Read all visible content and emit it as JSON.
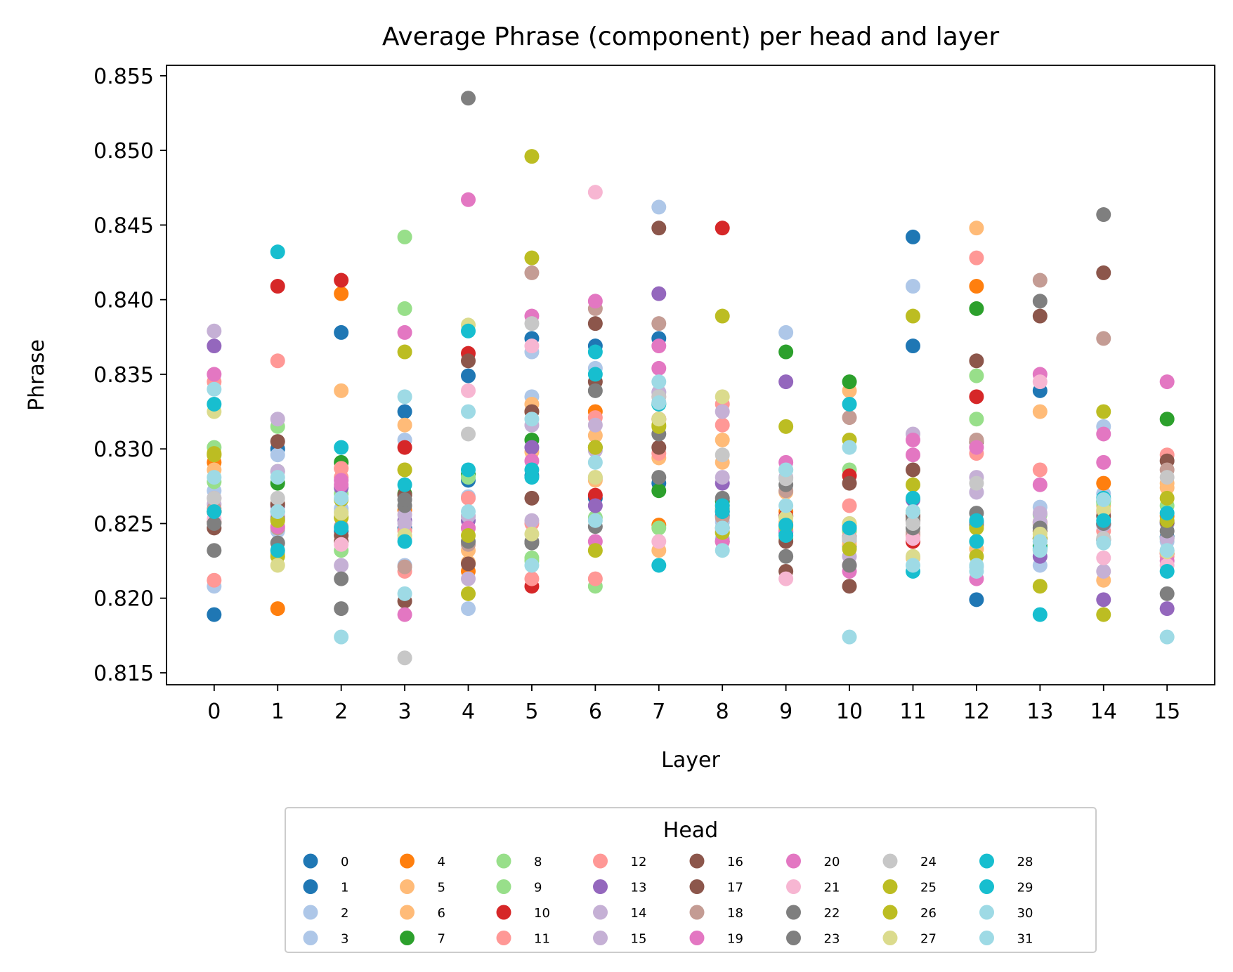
{
  "chart_data": {
    "type": "scatter",
    "title": "Average Phrase (component) per head and layer",
    "xlabel": "Layer",
    "ylabel": "Phrase",
    "x_ticks": [
      0,
      1,
      2,
      3,
      4,
      5,
      6,
      7,
      8,
      9,
      10,
      11,
      12,
      13,
      14,
      15
    ],
    "y_ticks": [
      "0.815",
      "0.820",
      "0.825",
      "0.830",
      "0.835",
      "0.840",
      "0.845",
      "0.850",
      "0.855"
    ],
    "xlim": [
      -0.75,
      15.75
    ],
    "ylim": [
      0.8142,
      0.8557
    ],
    "grid": false,
    "legend": {
      "title": "Head",
      "placement": "bottom-center, below plot",
      "columns": 8
    },
    "series": [
      {
        "name": "0",
        "color": "#1f77b4",
        "values": [
          0.8189,
          0.83,
          0.8378,
          0.8325,
          0.8349,
          0.8374,
          0.8369,
          0.8374,
          0.826,
          0.8244,
          0.8241,
          0.8369,
          0.8199,
          0.8339,
          0.825,
          0.825
        ]
      },
      {
        "name": "1",
        "color": "#1f77b4",
        "values": [
          0.8258,
          0.8258,
          0.8245,
          0.8247,
          0.8279,
          0.8282,
          0.8267,
          0.8277,
          0.8255,
          0.8255,
          0.8235,
          0.8442,
          0.8251,
          0.824,
          0.8239,
          0.8241
        ]
      },
      {
        "name": "2",
        "color": "#aec7e8",
        "values": [
          0.8208,
          0.8296,
          0.826,
          0.8306,
          0.8193,
          0.8365,
          0.8354,
          0.8462,
          0.8251,
          0.8378,
          0.825,
          0.8409,
          0.8271,
          0.8261,
          0.8315,
          0.8238
        ]
      },
      {
        "name": "3",
        "color": "#aec7e8",
        "values": [
          0.8272,
          0.8245,
          0.8258,
          0.8222,
          0.8268,
          0.8335,
          0.828,
          0.8338,
          0.824,
          0.8255,
          0.8238,
          0.8242,
          0.8221,
          0.8222,
          0.827,
          0.8232
        ]
      },
      {
        "name": "4",
        "color": "#ff7f0e",
        "values": [
          0.8291,
          0.8193,
          0.8404,
          0.8259,
          0.8218,
          0.8325,
          0.8325,
          0.8249,
          0.8262,
          0.8258,
          0.8245,
          0.8253,
          0.8409,
          0.8251,
          0.8277,
          0.8255
        ]
      },
      {
        "name": "5",
        "color": "#ffbb78",
        "values": [
          0.8296,
          0.823,
          0.8339,
          0.8316,
          0.8232,
          0.833,
          0.8309,
          0.8232,
          0.8306,
          0.8271,
          0.8339,
          0.8227,
          0.8448,
          0.8325,
          0.8212,
          0.8277
        ]
      },
      {
        "name": "6",
        "color": "#ffbb78",
        "values": [
          0.8286,
          0.8263,
          0.8287,
          0.8286,
          0.8224,
          0.8298,
          0.8279,
          0.8294,
          0.8291,
          0.8251,
          0.8236,
          0.8251,
          0.8233,
          0.8232,
          0.8262,
          0.8274
        ]
      },
      {
        "name": "7",
        "color": "#2ca02c",
        "values": [
          0.8258,
          0.8277,
          0.8291,
          0.827,
          0.8283,
          0.8306,
          0.8301,
          0.8272,
          0.8265,
          0.8365,
          0.8345,
          0.8258,
          0.8394,
          0.8235,
          0.8265,
          0.832
        ]
      },
      {
        "name": "8",
        "color": "#98df8a",
        "values": [
          0.8301,
          0.8315,
          0.8232,
          0.8442,
          0.8281,
          0.8227,
          0.8208,
          0.8247,
          0.8259,
          0.8286,
          0.8286,
          0.8242,
          0.8349,
          0.8249,
          0.8264,
          0.8262
        ]
      },
      {
        "name": "9",
        "color": "#98df8a",
        "values": [
          0.8278,
          0.8285,
          0.827,
          0.8394,
          0.8255,
          0.8225,
          0.8254,
          0.833,
          0.8244,
          0.824,
          0.8245,
          0.8256,
          0.832,
          0.8256,
          0.824,
          0.824
        ]
      },
      {
        "name": "10",
        "color": "#d62728",
        "values": [
          0.8258,
          0.8409,
          0.8413,
          0.8301,
          0.8364,
          0.8208,
          0.8269,
          0.832,
          0.8448,
          0.8255,
          0.8282,
          0.8238,
          0.8335,
          0.824,
          0.8249,
          0.823
        ]
      },
      {
        "name": "11",
        "color": "#ff9896",
        "values": [
          0.8212,
          0.8359,
          0.8287,
          0.8218,
          0.8267,
          0.8213,
          0.8213,
          0.8297,
          0.8316,
          0.8246,
          0.8262,
          0.8242,
          0.8428,
          0.8286,
          0.8245,
          0.8296
        ]
      },
      {
        "name": "12",
        "color": "#ff9896",
        "values": [
          0.8345,
          0.8252,
          0.8281,
          0.8245,
          0.8247,
          0.825,
          0.8321,
          0.8335,
          0.833,
          0.8249,
          0.8241,
          0.8251,
          0.8297,
          0.825,
          0.8258,
          0.8228
        ]
      },
      {
        "name": "13",
        "color": "#9467bd",
        "values": [
          0.8369,
          0.8262,
          0.8274,
          0.8252,
          0.8252,
          0.8301,
          0.8262,
          0.8404,
          0.8277,
          0.8345,
          0.8249,
          0.8266,
          0.8251,
          0.8228,
          0.8199,
          0.8193
        ]
      },
      {
        "name": "14",
        "color": "#c5b0d5",
        "values": [
          0.8379,
          0.832,
          0.8222,
          0.8256,
          0.8213,
          0.8252,
          0.8316,
          0.8331,
          0.8325,
          0.8281,
          0.824,
          0.831,
          0.8281,
          0.8257,
          0.8218,
          0.824
        ]
      },
      {
        "name": "15",
        "color": "#c5b0d5",
        "values": [
          0.8263,
          0.8285,
          0.8254,
          0.825,
          0.8255,
          0.8316,
          0.8299,
          0.8338,
          0.8281,
          0.8245,
          0.8228,
          0.8255,
          0.8271,
          0.8251,
          0.8249,
          0.825
        ]
      },
      {
        "name": "16",
        "color": "#8c564b",
        "values": [
          0.8247,
          0.8305,
          0.8238,
          0.8198,
          0.8223,
          0.8267,
          0.8384,
          0.8301,
          0.8238,
          0.8238,
          0.8208,
          0.8286,
          0.8359,
          0.8389,
          0.8418,
          0.8292
        ]
      },
      {
        "name": "17",
        "color": "#8c564b",
        "values": [
          0.8251,
          0.8263,
          0.8242,
          0.8269,
          0.8359,
          0.8325,
          0.8345,
          0.8448,
          0.8247,
          0.8218,
          0.8277,
          0.8255,
          0.8305,
          0.8245,
          0.8255,
          0.8251
        ]
      },
      {
        "name": "18",
        "color": "#c49c94",
        "values": [
          0.826,
          0.8247,
          0.8248,
          0.8221,
          0.8236,
          0.8418,
          0.8394,
          0.8384,
          0.8254,
          0.8272,
          0.8321,
          0.8244,
          0.8306,
          0.8413,
          0.8374,
          0.8286
        ]
      },
      {
        "name": "19",
        "color": "#e377c2",
        "values": [
          0.835,
          0.8248,
          0.8276,
          0.8378,
          0.8247,
          0.8389,
          0.8399,
          0.8354,
          0.8238,
          0.8291,
          0.8218,
          0.8306,
          0.8301,
          0.835,
          0.831,
          0.8345
        ]
      },
      {
        "name": "20",
        "color": "#e377c2",
        "values": [
          0.8267,
          0.8255,
          0.8279,
          0.8189,
          0.8467,
          0.8292,
          0.8238,
          0.8369,
          0.8258,
          0.8245,
          0.8222,
          0.8296,
          0.8213,
          0.8276,
          0.8291,
          0.8225
        ]
      },
      {
        "name": "21",
        "color": "#f7b6d2",
        "values": [
          0.8253,
          0.8255,
          0.8236,
          0.824,
          0.8339,
          0.8369,
          0.8472,
          0.8238,
          0.8245,
          0.8213,
          0.825,
          0.824,
          0.8249,
          0.8345,
          0.8227,
          0.8222
        ]
      },
      {
        "name": "22",
        "color": "#7f7f7f",
        "values": [
          0.8232,
          0.8237,
          0.8213,
          0.8262,
          0.8238,
          0.8237,
          0.8339,
          0.8281,
          0.8267,
          0.8228,
          0.8222,
          0.8247,
          0.8257,
          0.8247,
          0.8457,
          0.8203
        ]
      },
      {
        "name": "23",
        "color": "#7f7f7f",
        "values": [
          0.825,
          0.8253,
          0.8193,
          0.8266,
          0.8535,
          0.8238,
          0.8248,
          0.831,
          0.8258,
          0.8276,
          0.824,
          0.8252,
          0.8249,
          0.8399,
          0.825,
          0.8245
        ]
      },
      {
        "name": "24",
        "color": "#c7c7c7",
        "values": [
          0.8267,
          0.8267,
          0.8255,
          0.816,
          0.831,
          0.8384,
          0.8281,
          0.8335,
          0.8296,
          0.828,
          0.824,
          0.825,
          0.8277,
          0.8238,
          0.824,
          0.8281
        ]
      },
      {
        "name": "25",
        "color": "#bcbd22",
        "values": [
          0.8297,
          0.8228,
          0.8266,
          0.8286,
          0.8242,
          0.8428,
          0.8232,
          0.8315,
          0.8389,
          0.8315,
          0.8233,
          0.8276,
          0.8247,
          0.8208,
          0.8325,
          0.8267
        ]
      },
      {
        "name": "26",
        "color": "#bcbd22",
        "values": [
          0.8296,
          0.8252,
          0.8254,
          0.8365,
          0.8203,
          0.8496,
          0.8301,
          0.8316,
          0.8244,
          0.8248,
          0.8306,
          0.8389,
          0.8228,
          0.824,
          0.8189,
          0.8252
        ]
      },
      {
        "name": "27",
        "color": "#dbdb8d",
        "values": [
          0.8325,
          0.8222,
          0.8257,
          0.8242,
          0.8383,
          0.8243,
          0.8281,
          0.832,
          0.8335,
          0.8254,
          0.825,
          0.8228,
          0.8238,
          0.8243,
          0.8259,
          0.8231
        ]
      },
      {
        "name": "28",
        "color": "#17becf",
        "values": [
          0.8258,
          0.8432,
          0.8247,
          0.8276,
          0.8286,
          0.8281,
          0.8365,
          0.8222,
          0.8262,
          0.8242,
          0.8247,
          0.8218,
          0.8252,
          0.8189,
          0.8252,
          0.8218
        ]
      },
      {
        "name": "29",
        "color": "#17becf",
        "values": [
          0.833,
          0.8232,
          0.8301,
          0.8238,
          0.8379,
          0.8286,
          0.835,
          0.833,
          0.8258,
          0.8249,
          0.833,
          0.8267,
          0.8238,
          0.8233,
          0.8267,
          0.8257
        ]
      },
      {
        "name": "30",
        "color": "#9edae5",
        "values": [
          0.834,
          0.8281,
          0.8267,
          0.8335,
          0.8325,
          0.8222,
          0.8291,
          0.8345,
          0.8247,
          0.8286,
          0.8301,
          0.8222,
          0.8222,
          0.8238,
          0.8237,
          0.8232
        ]
      },
      {
        "name": "31",
        "color": "#9edae5",
        "values": [
          0.8281,
          0.8258,
          0.8174,
          0.8203,
          0.8258,
          0.832,
          0.8252,
          0.8331,
          0.8232,
          0.8262,
          0.8174,
          0.8258,
          0.8218,
          0.8232,
          0.8266,
          0.8174
        ]
      }
    ]
  }
}
